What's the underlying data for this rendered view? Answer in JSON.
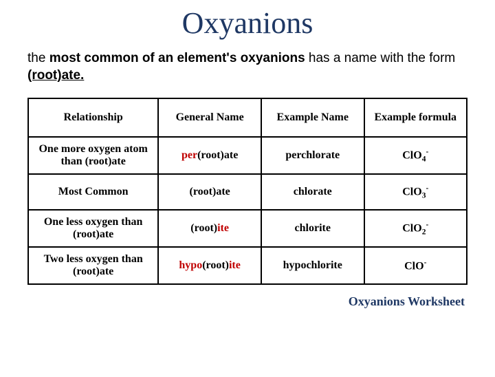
{
  "title": "Oxyanions",
  "intro": {
    "prefix": "the ",
    "bold1": "most common of an element's oxyanions",
    "mid": " has a name with the form ",
    "underline": "(root)ate.",
    "suffix": ""
  },
  "table": {
    "headers": {
      "relationship": "Relationship",
      "general": "General Name",
      "example_name": "Example Name",
      "example_formula": "Example formula"
    },
    "rows": [
      {
        "relationship": "One more oxygen atom than (root)ate",
        "general": {
          "pre": "per",
          "root": "(root)",
          "suf": "ate",
          "pre_red": true,
          "suf_red": false
        },
        "example": "perchlorate",
        "formula": {
          "el": "ClO",
          "sub": "4",
          "sup": "-"
        }
      },
      {
        "relationship": "Most Common",
        "general": {
          "pre": "",
          "root": "(root)",
          "suf": "ate",
          "pre_red": false,
          "suf_red": false
        },
        "example": "chlorate",
        "formula": {
          "el": "ClO",
          "sub": "3",
          "sup": "-"
        }
      },
      {
        "relationship": "One less oxygen than (root)ate",
        "general": {
          "pre": "",
          "root": "(root)",
          "suf": "ite",
          "pre_red": false,
          "suf_red": true
        },
        "example": "chlorite",
        "formula": {
          "el": "ClO",
          "sub": "2",
          "sup": "-"
        }
      },
      {
        "relationship": "Two less oxygen than (root)ate",
        "general": {
          "pre": "hypo",
          "root": "(root)",
          "suf": "ite",
          "pre_red": true,
          "suf_red": true
        },
        "example": "hypochlorite",
        "formula": {
          "el": "ClO",
          "sub": "",
          "sup": "-"
        }
      }
    ]
  },
  "footer": "Oxyanions Worksheet",
  "colors": {
    "title": "#1f3864",
    "red": "#c00000",
    "border": "#000000",
    "background": "#ffffff"
  }
}
